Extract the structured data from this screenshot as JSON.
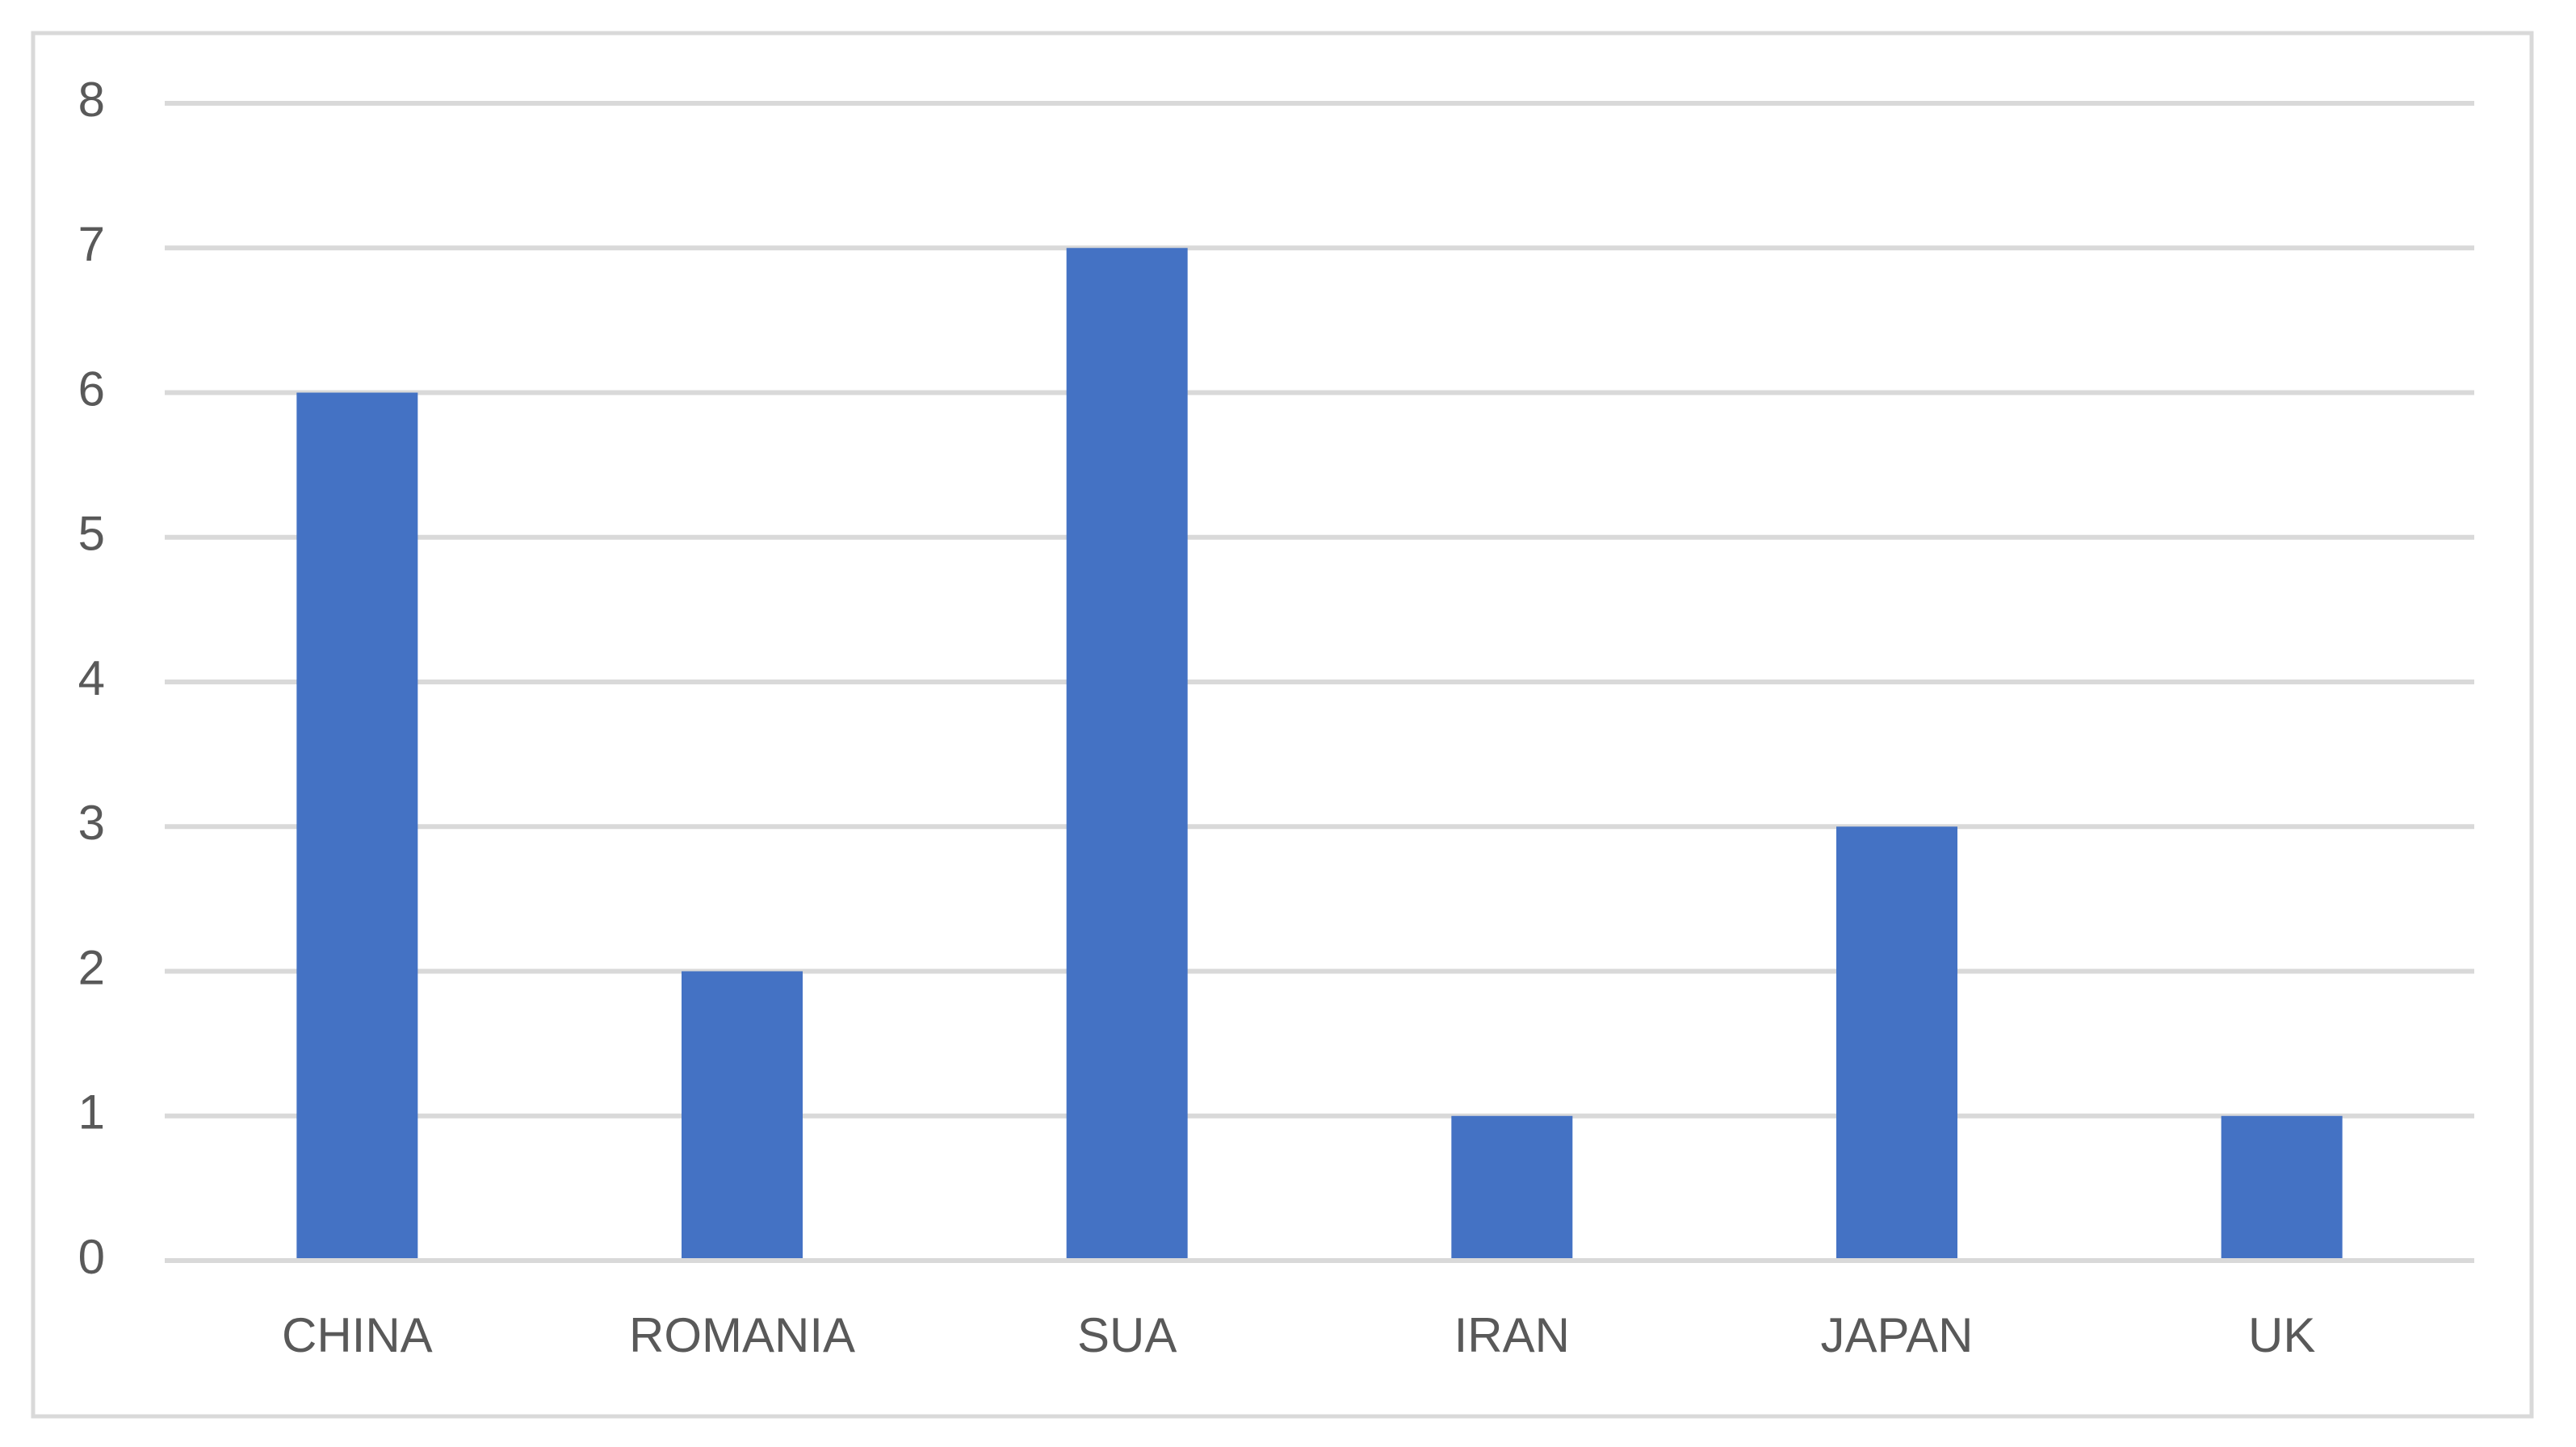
{
  "chart_data": {
    "type": "bar",
    "categories": [
      "CHINA",
      "ROMANIA",
      "SUA",
      "IRAN",
      "JAPAN",
      "UK"
    ],
    "values": [
      6,
      2,
      7,
      1,
      3,
      1
    ],
    "color": "#4472c4",
    "ylim": [
      0,
      8
    ],
    "yticks": [
      0,
      1,
      2,
      3,
      4,
      5,
      6,
      7,
      8
    ],
    "grid": true
  }
}
